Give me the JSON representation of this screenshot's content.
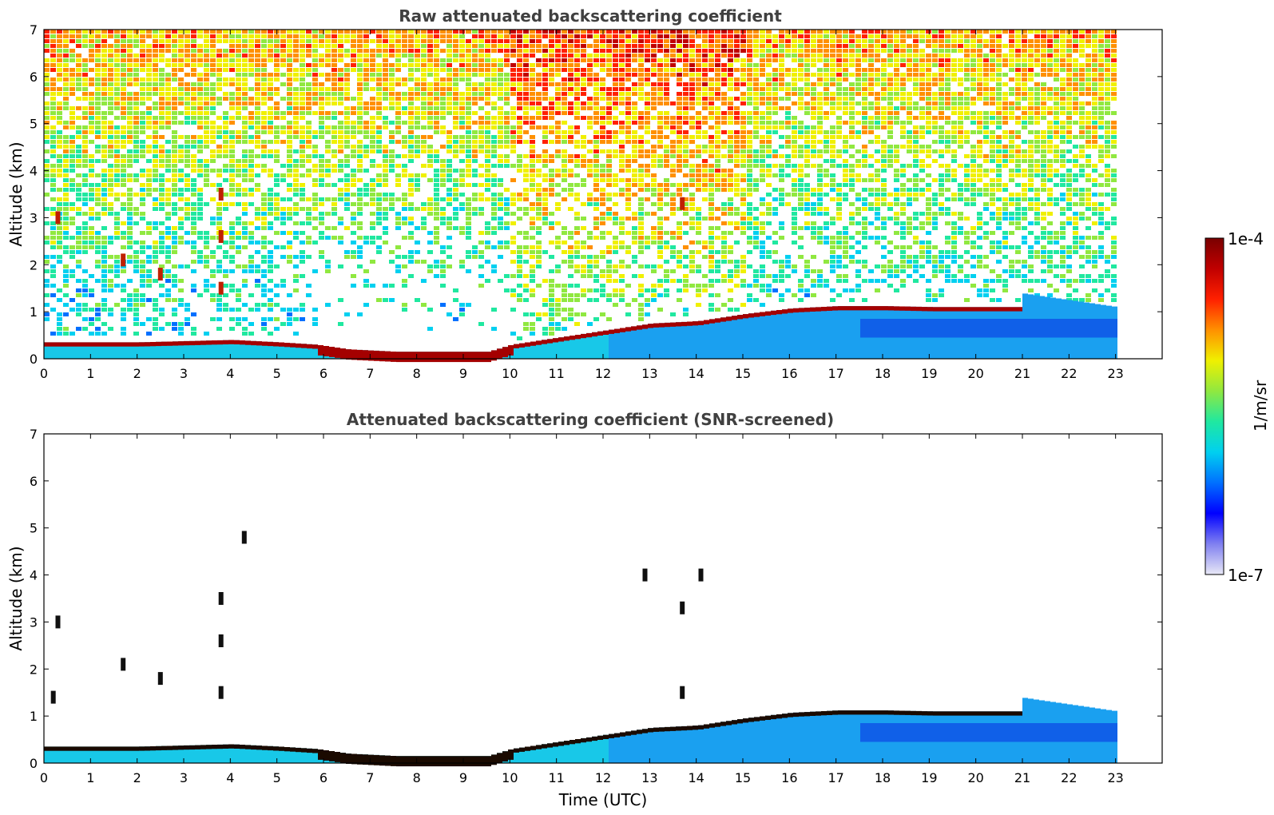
{
  "chart_data": [
    {
      "type": "heatmap",
      "title": "Raw attenuated backscattering coefficient",
      "xlabel": "",
      "ylabel": "Altitude (km)",
      "xlim": [
        0,
        24
      ],
      "ylim": [
        0,
        7
      ],
      "xticks": [
        0,
        1,
        2,
        3,
        4,
        5,
        6,
        7,
        8,
        9,
        10,
        11,
        12,
        13,
        14,
        15,
        16,
        17,
        18,
        19,
        20,
        21,
        22,
        23
      ],
      "yticks": [
        0,
        1,
        2,
        3,
        4,
        5,
        6,
        7
      ],
      "data_extent_hours": [
        0,
        23
      ],
      "boundary_layer_top_km": {
        "time_h": [
          0,
          2,
          4,
          5,
          5.8,
          6.5,
          7.5,
          8.5,
          9.5,
          10,
          11,
          12,
          13,
          14,
          15,
          16,
          17,
          18,
          19,
          20,
          20.9
        ],
        "height_km": [
          0.35,
          0.35,
          0.4,
          0.35,
          0.3,
          0.2,
          0.15,
          0.15,
          0.15,
          0.3,
          0.45,
          0.6,
          0.75,
          0.8,
          0.95,
          1.07,
          1.12,
          1.12,
          1.1,
          1.1,
          1.1
        ]
      },
      "late_layer": {
        "time_h": [
          20.9,
          23
        ],
        "top_km": [
          1.4,
          1.1
        ]
      },
      "plumes": [
        {
          "t": 0.3,
          "alt_km": 3.0
        },
        {
          "t": 1.7,
          "alt_km": 2.1
        },
        {
          "t": 2.5,
          "alt_km": 1.8
        },
        {
          "t": 3.8,
          "alt_km": 3.5
        },
        {
          "t": 3.8,
          "alt_km": 2.6
        },
        {
          "t": 3.8,
          "alt_km": 1.5
        },
        {
          "t": 13.7,
          "alt_km": 3.3
        }
      ]
    },
    {
      "type": "heatmap",
      "title": "Attenuated backscattering coefficient (SNR-screened)",
      "xlabel": "Time (UTC)",
      "ylabel": "Altitude (km)",
      "xlim": [
        0,
        24
      ],
      "ylim": [
        0,
        7
      ],
      "xticks": [
        0,
        1,
        2,
        3,
        4,
        5,
        6,
        7,
        8,
        9,
        10,
        11,
        12,
        13,
        14,
        15,
        16,
        17,
        18,
        19,
        20,
        21,
        22,
        23
      ],
      "yticks": [
        0,
        1,
        2,
        3,
        4,
        5,
        6,
        7
      ],
      "data_extent_hours": [
        0,
        23
      ],
      "plumes": [
        {
          "t": 0.3,
          "alt_km": 3.0
        },
        {
          "t": 0.2,
          "alt_km": 1.4
        },
        {
          "t": 1.7,
          "alt_km": 2.1
        },
        {
          "t": 2.5,
          "alt_km": 1.8
        },
        {
          "t": 3.8,
          "alt_km": 3.5
        },
        {
          "t": 3.8,
          "alt_km": 2.6
        },
        {
          "t": 3.8,
          "alt_km": 1.5
        },
        {
          "t": 4.3,
          "alt_km": 4.8
        },
        {
          "t": 13.7,
          "alt_km": 3.3
        },
        {
          "t": 13.7,
          "alt_km": 1.5
        },
        {
          "t": 12.9,
          "alt_km": 4.0
        },
        {
          "t": 14.1,
          "alt_km": 4.0
        }
      ]
    }
  ],
  "colorbar": {
    "label": "1/m/sr",
    "max_label": "1e-4",
    "min_label": "1e-7",
    "colors": [
      "#e8e8f6",
      "#8080f0",
      "#0000ff",
      "#0070ff",
      "#00d0f0",
      "#20e8a0",
      "#90e840",
      "#f0f000",
      "#ff9000",
      "#ff2000",
      "#c00000",
      "#7a0000"
    ]
  }
}
